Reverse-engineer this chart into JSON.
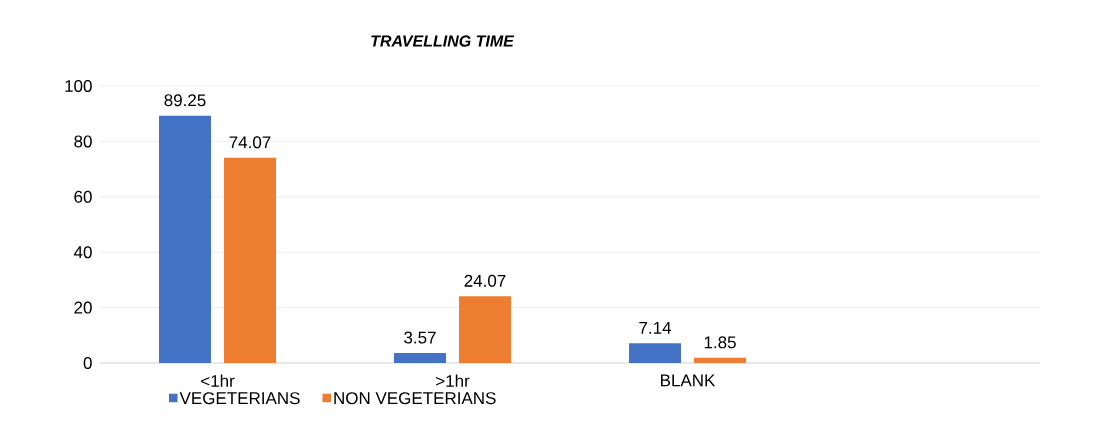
{
  "chart_data": {
    "type": "bar",
    "title": "TRAVELLING TIME",
    "categories": [
      "<1hr",
      ">1hr",
      "BLANK",
      null
    ],
    "series": [
      {
        "name": "VEGETERIANS",
        "color": "#4472c4",
        "values": [
          89.25,
          3.57,
          7.14,
          null
        ],
        "value_labels": [
          "89.25",
          "3.57",
          "7.14",
          null
        ]
      },
      {
        "name": "NON VEGETERIANS",
        "color": "#ed7d31",
        "values": [
          74.07,
          24.07,
          1.85,
          null
        ],
        "value_labels": [
          "74.07",
          "24.07",
          "1.85",
          null
        ]
      }
    ],
    "ylim": [
      0,
      100
    ],
    "yticks": [
      0,
      20,
      40,
      60,
      80,
      100
    ],
    "grid": "y",
    "legend": "bottom"
  }
}
